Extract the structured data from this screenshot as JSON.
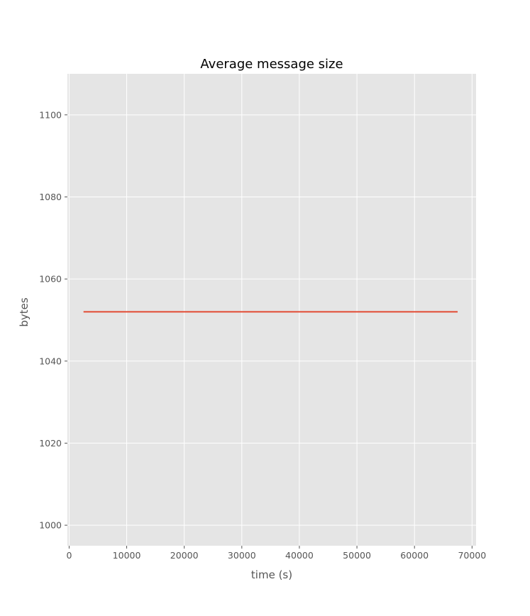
{
  "colors": {
    "plot_background": "#e5e5e5",
    "grid": "#ffffff",
    "series_line": "#e24a33",
    "tick_text": "#555555",
    "title_text": "#000000"
  },
  "chart_data": {
    "type": "line",
    "title": "Average message size",
    "xlabel": "time (s)",
    "ylabel": "bytes",
    "xlim": [
      -300,
      70700
    ],
    "ylim": [
      995,
      1110
    ],
    "xticks": [
      0,
      10000,
      20000,
      30000,
      40000,
      50000,
      60000,
      70000
    ],
    "xtick_labels": [
      "0",
      "10000",
      "20000",
      "30000",
      "40000",
      "50000",
      "60000",
      "70000"
    ],
    "yticks": [
      1000,
      1020,
      1040,
      1060,
      1080,
      1100
    ],
    "ytick_labels": [
      "1000",
      "1020",
      "1040",
      "1060",
      "1080",
      "1100"
    ],
    "grid": true,
    "series": [
      {
        "x": [
          2500,
          67500
        ],
        "y": [
          1052,
          1052
        ]
      }
    ]
  }
}
